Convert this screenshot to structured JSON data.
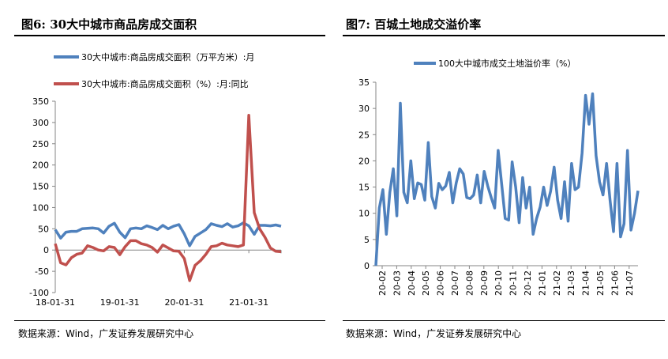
{
  "left": {
    "title": "图6:  30大中城市商品房成交面积",
    "source": "数据来源：Wind，广发证券发展研究中心"
  },
  "right": {
    "title": "图7:  百城土地成交溢价率",
    "source": "数据来源：Wind，广发证券发展研究中心"
  },
  "colors": {
    "blue": "#4f81bd",
    "red": "#c0504d"
  },
  "chart_data": [
    {
      "type": "line",
      "title": "30大中城市商品房成交面积",
      "ylim": [
        -100,
        350
      ],
      "yticks": [
        -100,
        -50,
        0,
        50,
        100,
        150,
        200,
        250,
        300,
        350
      ],
      "xtick_labels": [
        "18-01-31",
        "19-01-31",
        "20-01-31",
        "21-01-31"
      ],
      "xtick_index": [
        0,
        12,
        24,
        36
      ],
      "legend_position": "top",
      "series": [
        {
          "name": "30大中城市:商品房成交面积（万平方米）:月",
          "color": "#4f81bd",
          "values": [
            48,
            28,
            42,
            44,
            44,
            50,
            51,
            52,
            50,
            40,
            56,
            63,
            42,
            29,
            50,
            52,
            50,
            57,
            53,
            48,
            58,
            50,
            56,
            60,
            38,
            10,
            32,
            40,
            48,
            62,
            58,
            55,
            62,
            54,
            57,
            64,
            57,
            37,
            58,
            58,
            57,
            59,
            56
          ]
        },
        {
          "name": "30大中城市:商品房成交面积（%）:月:同比",
          "color": "#c0504d",
          "values": [
            15,
            -30,
            -35,
            -18,
            -10,
            -7,
            10,
            6,
            0,
            -2,
            8,
            6,
            -11,
            8,
            22,
            22,
            15,
            12,
            6,
            -5,
            12,
            5,
            -2,
            -3,
            -20,
            -72,
            -36,
            -25,
            -10,
            8,
            10,
            16,
            12,
            10,
            8,
            12,
            317,
            88,
            50,
            30,
            5,
            -3,
            -4
          ]
        }
      ]
    },
    {
      "type": "line",
      "title": "百城土地成交溢价率",
      "ylim": [
        0,
        35
      ],
      "yticks": [
        0,
        5,
        10,
        15,
        20,
        25,
        30,
        35
      ],
      "legend_position": "top",
      "xtick_labels": [
        "20-02",
        "20-03",
        "20-04",
        "20-05",
        "20-06",
        "20-07",
        "20-08",
        "20-09",
        "20-10",
        "20-11",
        "20-12",
        "21-01",
        "21-02",
        "21-03",
        "21-04",
        "21-05",
        "21-06",
        "21-07"
      ],
      "series": [
        {
          "name": "100大中城市成交土地溢价率（%）",
          "color": "#4f81bd",
          "values": [
            0,
            11,
            14.5,
            6,
            14,
            18.5,
            9.5,
            31,
            14,
            12,
            20,
            12.8,
            15.8,
            15.5,
            12.5,
            23.5,
            13.2,
            11,
            15.7,
            14.5,
            15.2,
            17.8,
            12,
            15.8,
            18.5,
            17.5,
            13,
            12.8,
            13.5,
            17.3,
            12,
            18,
            15.2,
            13,
            11,
            22,
            15.5,
            9,
            8.7,
            19.8,
            15,
            8.2,
            16.8,
            11,
            15,
            6,
            9,
            11.2,
            15,
            11.5,
            14.2,
            18.8,
            12.5,
            9,
            16,
            8.5,
            19.5,
            14.5,
            15,
            21.5,
            32.5,
            27,
            32.8,
            21,
            16,
            13.5,
            19.5,
            12.5,
            6.5,
            19.5,
            5.5,
            8,
            22,
            6.8,
            10,
            14.3
          ]
        }
      ]
    }
  ]
}
